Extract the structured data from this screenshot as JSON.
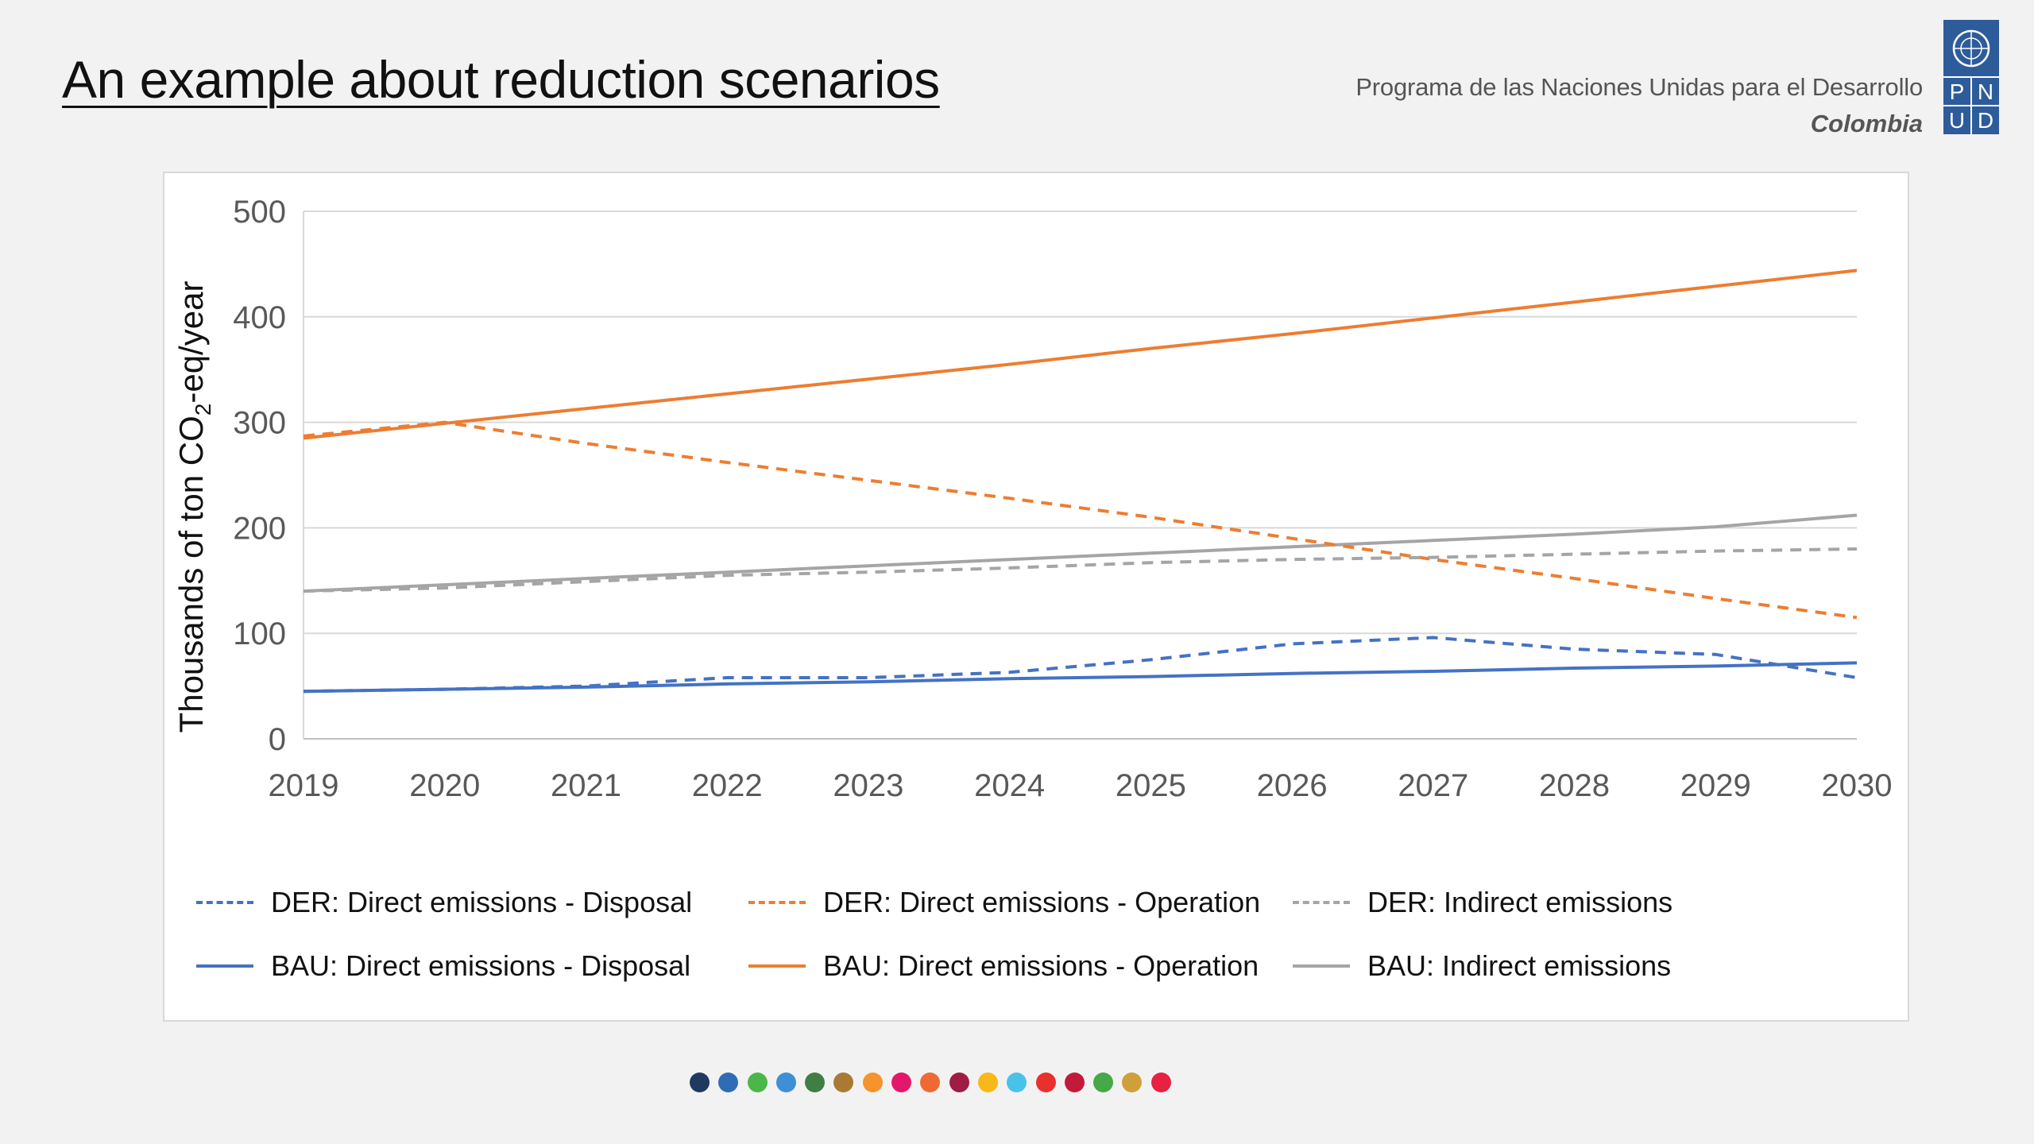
{
  "slide": {
    "title": "An example about reduction scenarios",
    "org_name": "Programa de las Naciones Unidas para el Desarrollo",
    "org_country": "Colombia",
    "logo_letters": [
      "P",
      "N",
      "U",
      "D"
    ]
  },
  "colors": {
    "blue": "#4472c4",
    "orange": "#ed7d31",
    "gray": "#a5a5a5",
    "logo_blue": "#2e5c9a"
  },
  "chart_data": {
    "type": "line",
    "ylabel": "Thousands of ton CO2-eq/year",
    "ylabel_parts": [
      "Thousands of ton CO",
      "2",
      "-eq/year"
    ],
    "ylim": [
      0,
      500
    ],
    "yticks": [
      "0",
      "100",
      "200",
      "300",
      "400",
      "500"
    ],
    "ytick_values": [
      0,
      100,
      200,
      300,
      400,
      500
    ],
    "categories": [
      "2019",
      "2020",
      "2021",
      "2022",
      "2023",
      "2024",
      "2025",
      "2026",
      "2027",
      "2028",
      "2029",
      "2030"
    ],
    "grid": true,
    "legend_position": "bottom",
    "series": [
      {
        "name": "DER: Direct emissions - Disposal",
        "color": "#4472c4",
        "style": "dashed",
        "values": [
          45,
          47,
          50,
          58,
          58,
          63,
          75,
          90,
          96,
          85,
          80,
          58
        ]
      },
      {
        "name": "DER: Direct emissions - Operation",
        "color": "#ed7d31",
        "style": "dashed",
        "values": [
          287,
          300,
          280,
          262,
          245,
          228,
          210,
          190,
          170,
          152,
          133,
          115
        ]
      },
      {
        "name": "DER: Indirect emissions",
        "color": "#a5a5a5",
        "style": "dashed",
        "values": [
          140,
          143,
          149,
          155,
          158,
          162,
          167,
          170,
          172,
          175,
          178,
          180
        ]
      },
      {
        "name": "BAU: Direct emissions - Disposal",
        "color": "#4472c4",
        "style": "solid",
        "values": [
          45,
          47,
          49,
          52,
          54,
          57,
          59,
          62,
          64,
          67,
          69,
          72
        ]
      },
      {
        "name": "BAU: Direct emissions - Operation",
        "color": "#ed7d31",
        "style": "solid",
        "values": [
          285,
          299,
          313,
          327,
          341,
          355,
          370,
          384,
          399,
          414,
          429,
          444
        ]
      },
      {
        "name": "BAU: Indirect emissions",
        "color": "#a5a5a5",
        "style": "solid",
        "values": [
          140,
          146,
          152,
          158,
          164,
          170,
          176,
          182,
          188,
          194,
          201,
          212
        ]
      }
    ]
  },
  "sdg_dots": [
    "#1f3a60",
    "#2e6cb5",
    "#4cb748",
    "#3d8fd6",
    "#3f7e44",
    "#a97a35",
    "#f7932d",
    "#e5176c",
    "#ef6a33",
    "#a01c44",
    "#f9b71a",
    "#49c2e9",
    "#e8312c",
    "#c41a3a",
    "#45a947",
    "#d09f3c",
    "#e7213f"
  ]
}
